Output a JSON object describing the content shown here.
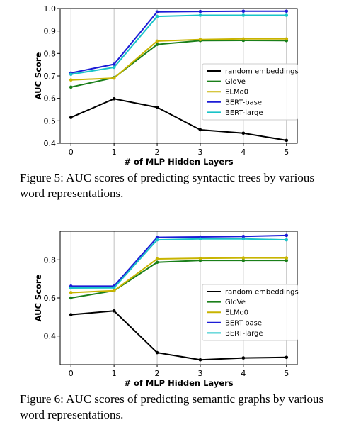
{
  "chart_data": [
    {
      "type": "line",
      "xlabel": "# of MLP Hidden Layers",
      "ylabel": "AUC Score",
      "x": [
        0,
        1,
        2,
        3,
        4,
        5
      ],
      "ylim": [
        0.4,
        1.0
      ],
      "yticks": [
        0.4,
        0.5,
        0.6,
        0.7,
        0.8,
        0.9,
        1.0
      ],
      "ytick_labels": [
        "0.4",
        "0.5",
        "0.6",
        "0.7",
        "0.8",
        "0.9",
        "1.0"
      ],
      "grid": "vertical",
      "legend_position": "center-right",
      "series": [
        {
          "name": "random embeddings",
          "color": "#000000",
          "values": [
            0.515,
            0.598,
            0.56,
            0.46,
            0.445,
            0.413
          ]
        },
        {
          "name": "GloVe",
          "color": "#1a7f1a",
          "values": [
            0.65,
            0.692,
            0.84,
            0.857,
            0.858,
            0.857
          ]
        },
        {
          "name": "ELMo0",
          "color": "#c8b400",
          "values": [
            0.682,
            0.69,
            0.855,
            0.862,
            0.865,
            0.865
          ]
        },
        {
          "name": "BERT-base",
          "color": "#1c1cd6",
          "values": [
            0.713,
            0.752,
            0.985,
            0.987,
            0.988,
            0.988
          ]
        },
        {
          "name": "BERT-large",
          "color": "#19c3c8",
          "values": [
            0.707,
            0.738,
            0.965,
            0.97,
            0.97,
            0.97
          ]
        }
      ],
      "caption": "Figure 5: AUC scores of predicting syntactic trees by various word representations."
    },
    {
      "type": "line",
      "xlabel": "# of MLP Hidden Layers",
      "ylabel": "AUC Score",
      "x": [
        0,
        1,
        2,
        3,
        4,
        5
      ],
      "ylim": [
        0.25,
        0.95
      ],
      "yticks": [
        0.4,
        0.6,
        0.8
      ],
      "ytick_labels": [
        "0.4",
        "0.6",
        "0.8"
      ],
      "grid": "vertical",
      "legend_position": "lower-right",
      "series": [
        {
          "name": "random embeddings",
          "color": "#000000",
          "values": [
            0.512,
            0.532,
            0.313,
            0.275,
            0.285,
            0.288
          ]
        },
        {
          "name": "GloVe",
          "color": "#1a7f1a",
          "values": [
            0.6,
            0.638,
            0.787,
            0.797,
            0.797,
            0.797
          ]
        },
        {
          "name": "ELMo0",
          "color": "#c8b400",
          "values": [
            0.628,
            0.638,
            0.805,
            0.808,
            0.81,
            0.81
          ]
        },
        {
          "name": "BERT-base",
          "color": "#1c1cd6",
          "values": [
            0.662,
            0.662,
            0.918,
            0.92,
            0.923,
            0.928
          ]
        },
        {
          "name": "BERT-large",
          "color": "#19c3c8",
          "values": [
            0.652,
            0.653,
            0.905,
            0.91,
            0.91,
            0.905
          ]
        }
      ],
      "caption": "Figure 6: AUC scores of predicting semantic graphs by various word representations."
    }
  ]
}
